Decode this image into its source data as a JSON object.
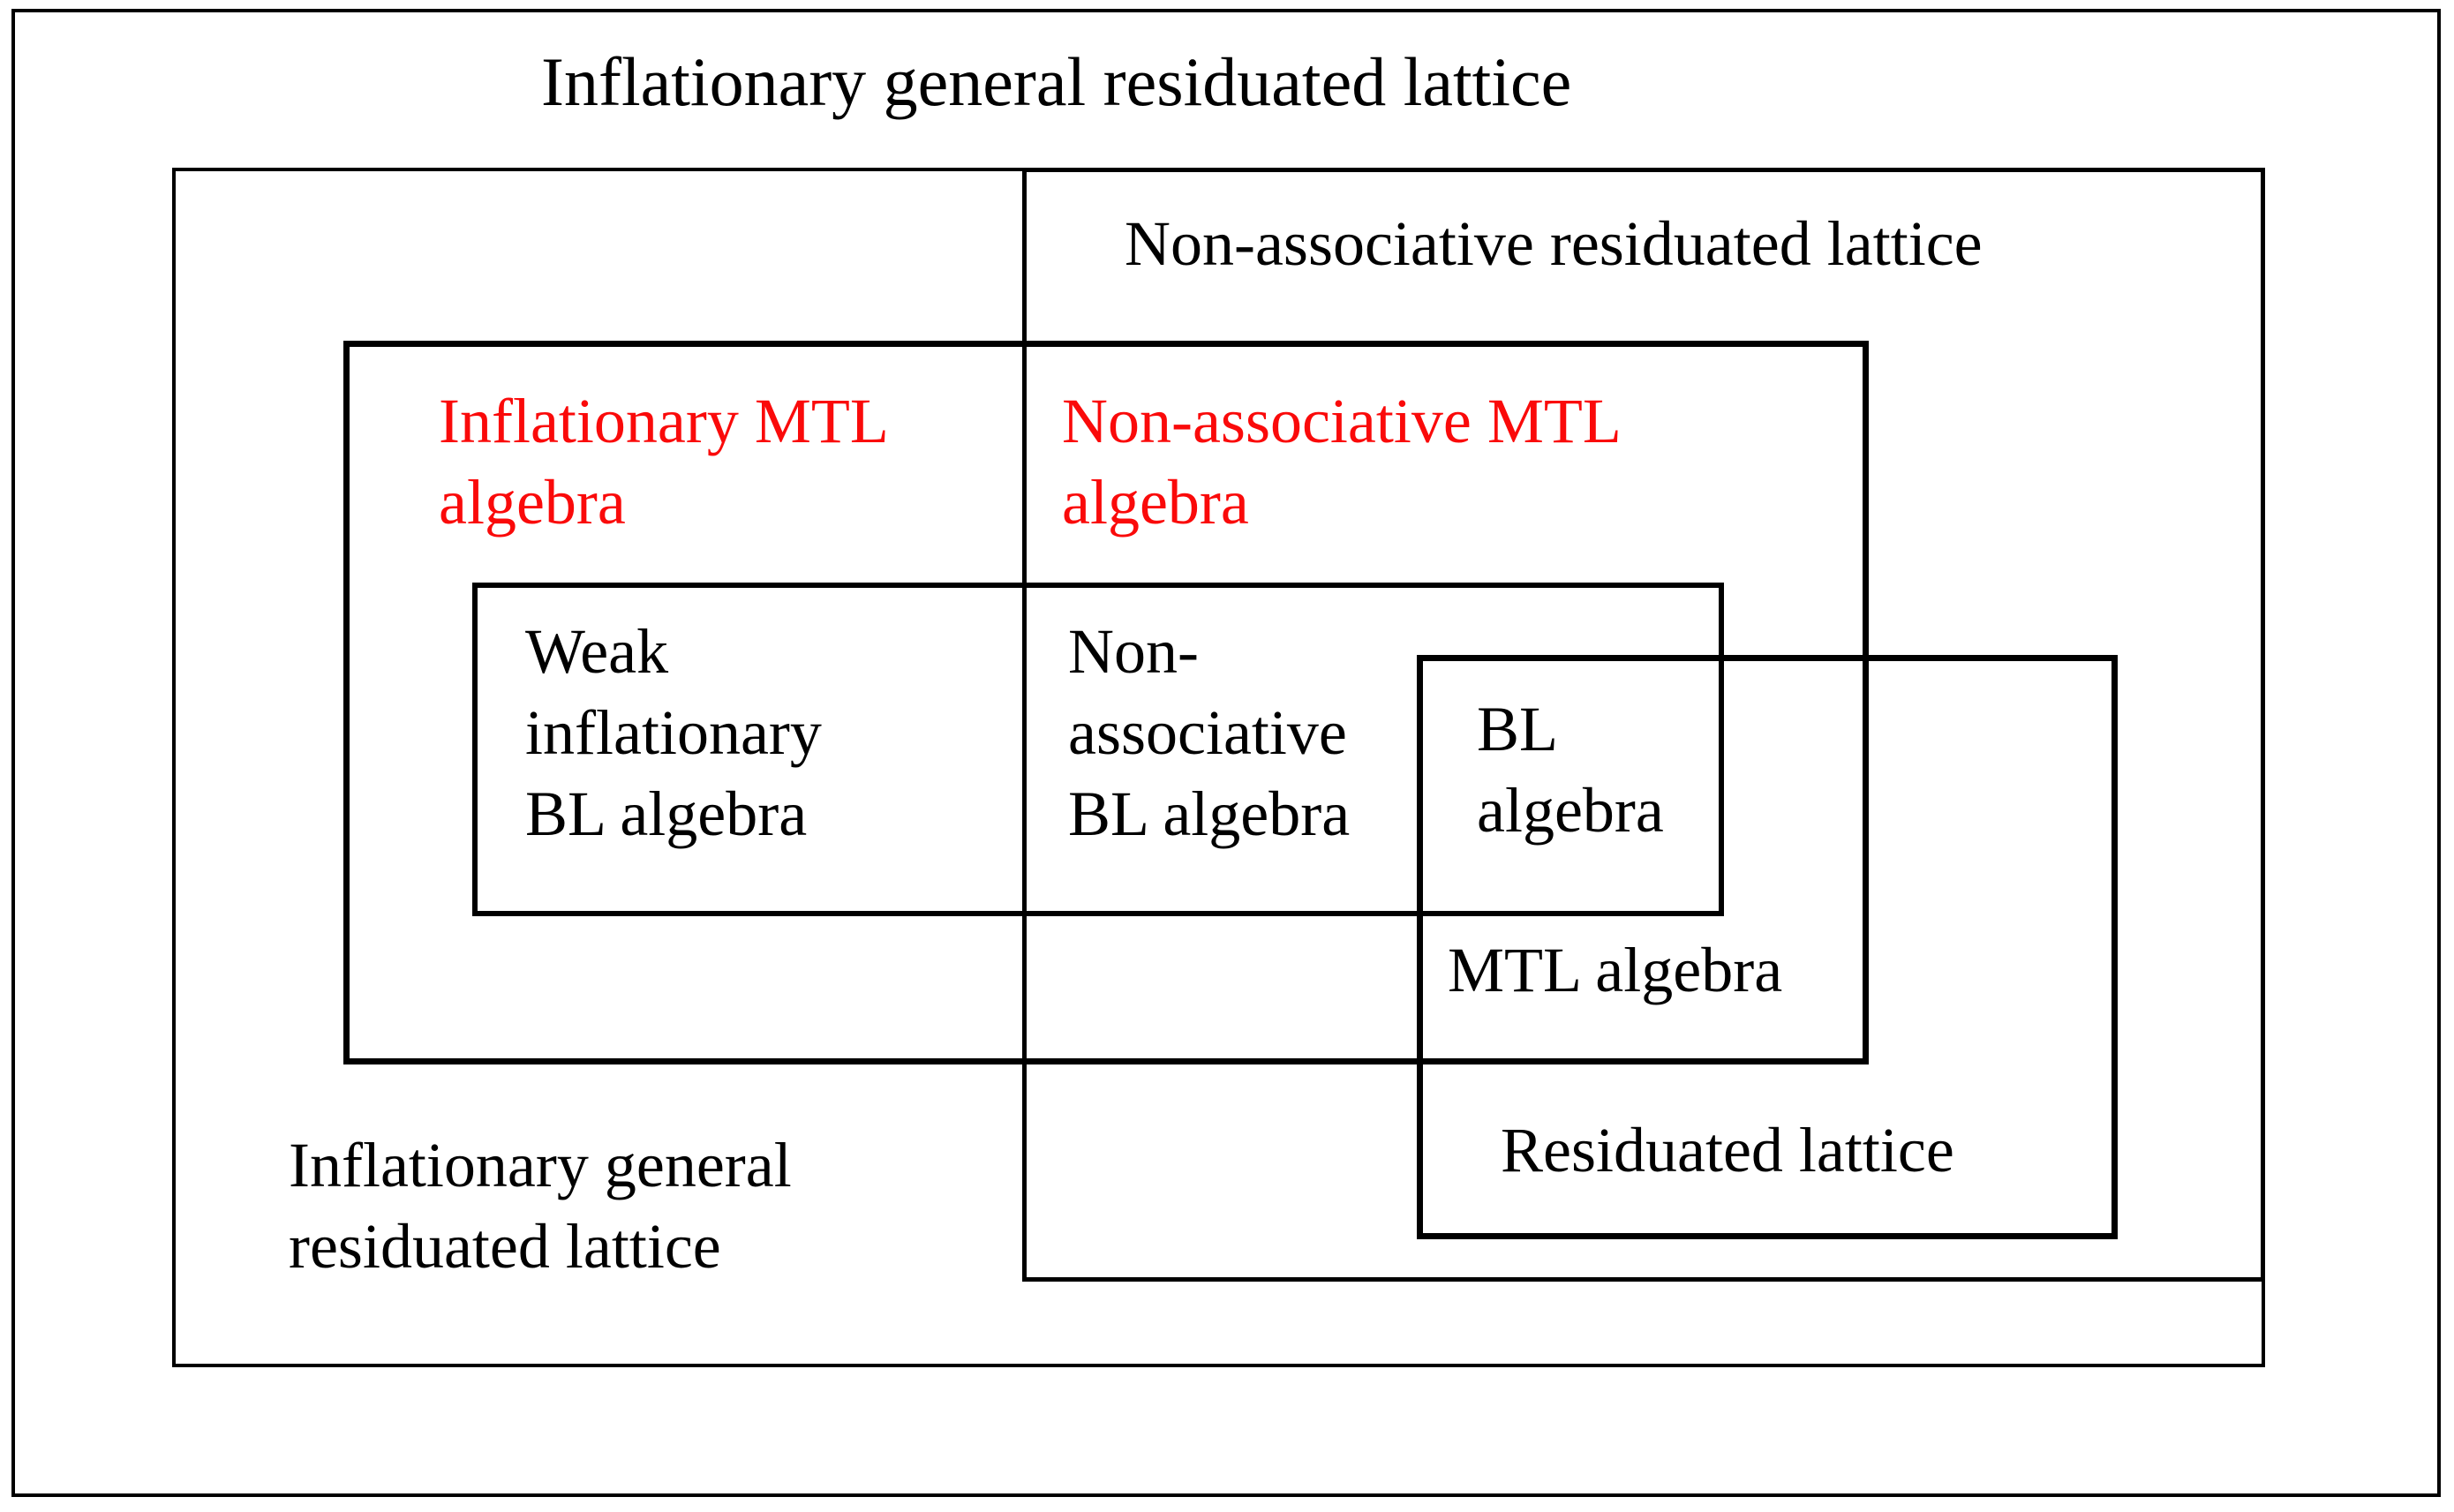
{
  "colors": {
    "line": "#000000",
    "text": "#000000",
    "accent_red": "#fa0a0a",
    "background": "#ffffff"
  },
  "diagram": {
    "title": "Inflationary general residuated lattice",
    "regions": {
      "inflationary_general_residuated_lattice": {
        "label": "Inflationary general\nresiduated lattice"
      },
      "non_associative_residuated_lattice": {
        "label": "Non-associative residuated lattice"
      },
      "inflationary_mtl_algebra": {
        "label": "Inflationary MTL\nalgebra",
        "color": "#fa0a0a"
      },
      "non_associative_mtl_algebra": {
        "label": "Non-associative MTL\nalgebra",
        "color": "#fa0a0a"
      },
      "weak_inflationary_bl_algebra": {
        "label": "Weak\ninflationary\nBL algebra"
      },
      "non_associative_bl_algebra": {
        "label": "Non-\nassociative\nBL algebra"
      },
      "bl_algebra": {
        "label": "BL\nalgebra"
      },
      "mtl_algebra": {
        "label": "MTL algebra"
      },
      "residuated_lattice": {
        "label": "Residuated lattice"
      }
    }
  }
}
